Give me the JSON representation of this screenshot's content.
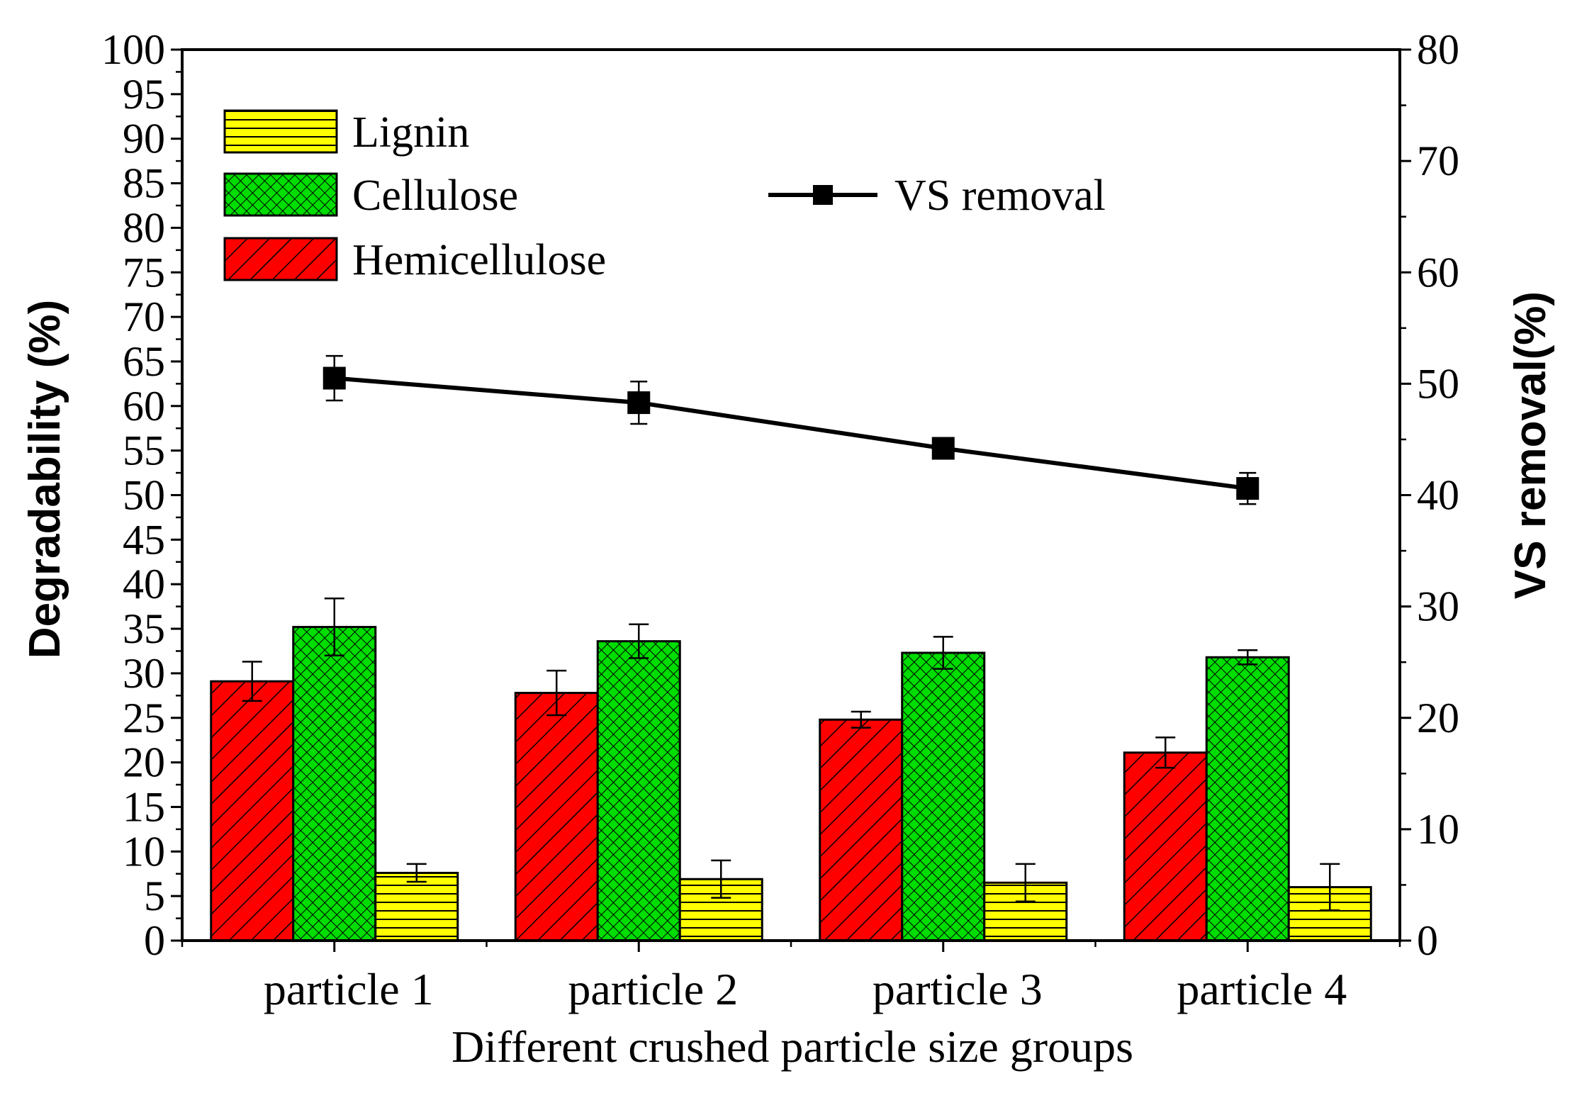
{
  "chart_data": {
    "type": "bar",
    "xlabel": "Different crushed particle size groups",
    "ylabel_left": "Degradability  (%)",
    "ylabel_right": "VS removal(%)",
    "ylim_left": [
      0,
      100
    ],
    "yticks_left": [
      "0",
      "5",
      "10",
      "15",
      "20",
      "25",
      "30",
      "35",
      "40",
      "45",
      "50",
      "55",
      "60",
      "65",
      "70",
      "75",
      "80",
      "85",
      "90",
      "95",
      "100"
    ],
    "ylim_right": [
      0,
      80
    ],
    "yticks_right": [
      "0",
      "10",
      "20",
      "30",
      "40",
      "50",
      "60",
      "70",
      "80"
    ],
    "categories": [
      "particle 1",
      "particle 2",
      "particle 3",
      "particle 4"
    ],
    "series": [
      {
        "name": "Hemicellulose",
        "color": "#ff0000",
        "pattern": "diagonal-hatch",
        "values": [
          29.1,
          27.8,
          24.8,
          21.1
        ],
        "errors": [
          2.2,
          2.5,
          0.9,
          1.7
        ]
      },
      {
        "name": "Cellulose",
        "color": "#00dd00",
        "pattern": "crosshatch",
        "values": [
          35.2,
          33.6,
          32.3,
          31.8
        ],
        "errors": [
          3.2,
          1.9,
          1.8,
          0.8
        ]
      },
      {
        "name": "Lignin",
        "color": "#ffff00",
        "pattern": "horizontal-lines",
        "values": [
          7.6,
          6.9,
          6.5,
          6.0
        ],
        "errors": [
          1.0,
          2.1,
          2.1,
          2.6
        ]
      }
    ],
    "line_series": {
      "name": "VS removal",
      "axis": "right",
      "color": "#000000",
      "marker": "square",
      "values": [
        50.5,
        48.3,
        44.2,
        40.6
      ],
      "errors": [
        2.0,
        1.9,
        0.8,
        1.4
      ]
    },
    "legend": {
      "bars": [
        "Lignin",
        "Cellulose",
        "Hemicellulose"
      ],
      "line": "VS removal",
      "placement": "top-left"
    }
  }
}
